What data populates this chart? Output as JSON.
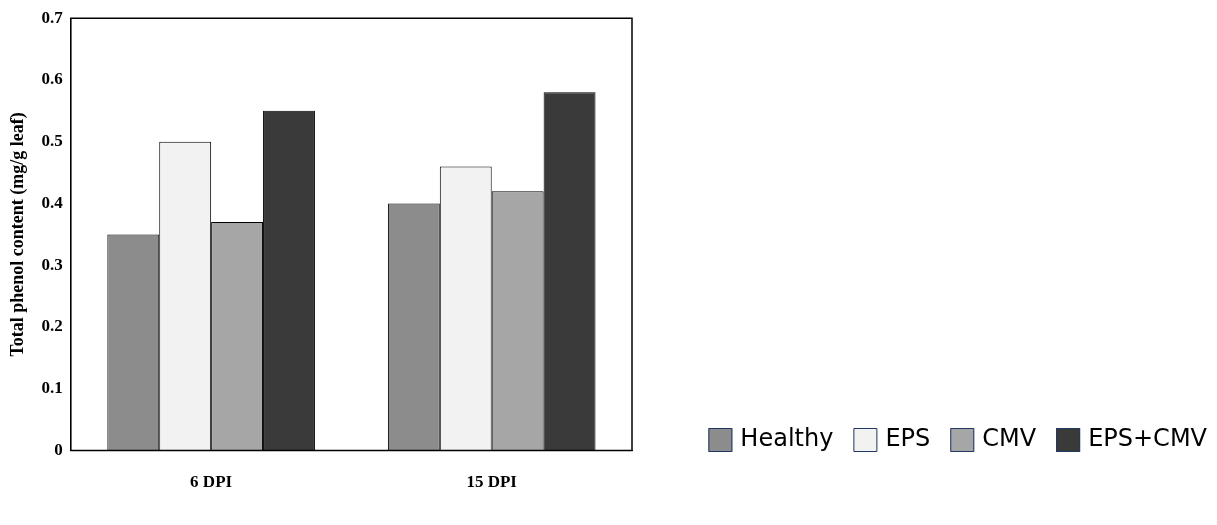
{
  "chart_data": {
    "type": "bar",
    "ylabel": "Total phenol content (mg/g leaf)",
    "categories": [
      "6 DPI",
      "15 DPI"
    ],
    "series": [
      {
        "name": "Healthy",
        "color": "#8c8c8c",
        "values": [
          0.35,
          0.4
        ]
      },
      {
        "name": "EPS",
        "color": "#f2f2f2",
        "values": [
          0.5,
          0.46
        ]
      },
      {
        "name": "CMV",
        "color": "#a6a6a6",
        "values": [
          0.37,
          0.42
        ]
      },
      {
        "name": "EPS+CMV",
        "color": "#3a3a3a",
        "values": [
          0.55,
          0.58
        ]
      }
    ],
    "ylim": [
      0,
      0.7
    ],
    "yticks": [
      0,
      0.1,
      0.2,
      0.3,
      0.4,
      0.5,
      0.6,
      0.7
    ],
    "grid": false,
    "legend": "bottom right"
  }
}
